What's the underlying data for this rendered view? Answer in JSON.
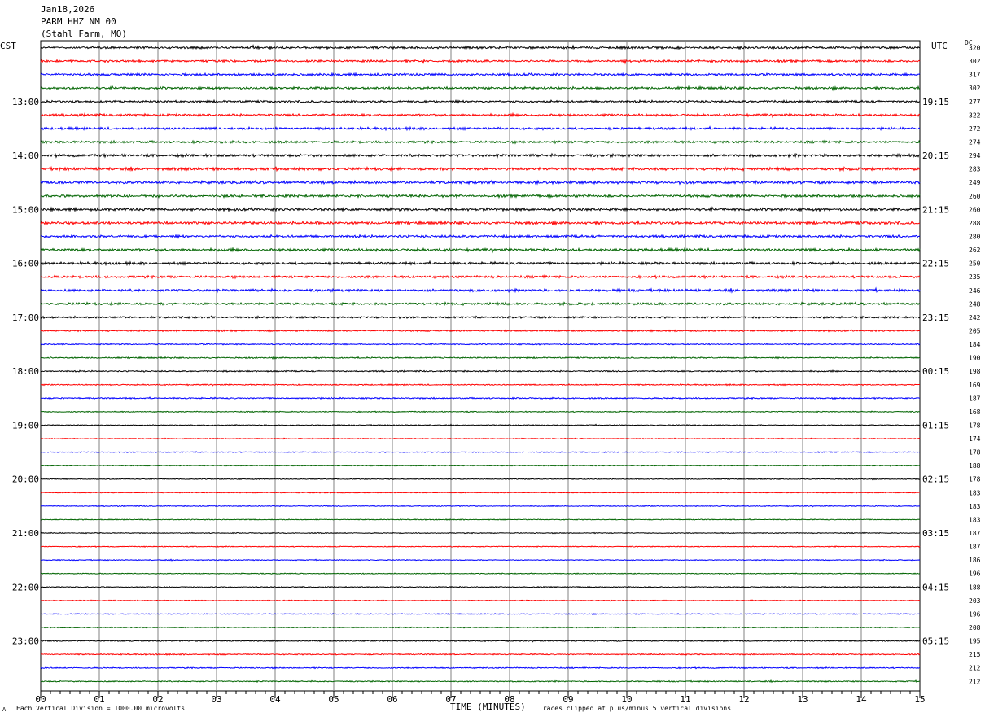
{
  "header": {
    "date": "Jan18,2026",
    "station": "PARM HHZ NM 00",
    "location": "(Stahl Farm, MO)"
  },
  "corner": {
    "left_zone": "CST",
    "right_zone": "UTC",
    "dc_label": "DC"
  },
  "footer": {
    "scale_note": "Each Vertical Division = 1000.00 microvolts",
    "clip_note": "Traces clipped at plus/minus 5 vertical divisions",
    "corner_mark": "A"
  },
  "chart_data": {
    "type": "line",
    "title": "",
    "xlabel": "TIME (MINUTES)",
    "ylabel": "",
    "xlim": [
      0,
      15
    ],
    "x_ticks": [
      "00",
      "01",
      "02",
      "03",
      "04",
      "05",
      "06",
      "07",
      "08",
      "09",
      "10",
      "11",
      "12",
      "13",
      "14",
      "15"
    ],
    "grid": true,
    "trace_colors": [
      "#000000",
      "#ff0000",
      "#0000ff",
      "#006400"
    ],
    "left_time_labels": [
      "13:00",
      "14:00",
      "15:00",
      "16:00",
      "17:00",
      "18:00",
      "19:00",
      "20:00",
      "21:00",
      "22:00",
      "23:00"
    ],
    "right_time_labels": [
      "19:15",
      "20:15",
      "21:15",
      "22:15",
      "23:15",
      "00:15",
      "01:15",
      "02:15",
      "03:15",
      "04:15",
      "05:15"
    ],
    "label_every_n_traces": 4,
    "first_labeled_trace": 4,
    "dc_offsets": [
      320,
      302,
      317,
      302,
      277,
      322,
      272,
      274,
      294,
      283,
      249,
      260,
      260,
      288,
      280,
      262,
      250,
      235,
      246,
      248,
      242,
      205,
      184,
      190,
      198,
      169,
      187,
      168,
      178,
      174,
      178,
      188,
      178,
      183,
      183,
      183,
      187,
      187,
      186,
      196,
      188,
      203,
      196,
      208,
      195,
      215,
      212,
      212
    ],
    "trace_activity": [
      0.8,
      0.75,
      0.8,
      0.8,
      0.75,
      0.8,
      0.8,
      0.75,
      0.9,
      0.95,
      0.9,
      0.85,
      0.9,
      0.95,
      0.85,
      0.9,
      0.85,
      0.8,
      0.85,
      0.8,
      0.65,
      0.5,
      0.4,
      0.45,
      0.45,
      0.4,
      0.45,
      0.35,
      0.35,
      0.3,
      0.3,
      0.3,
      0.3,
      0.3,
      0.3,
      0.3,
      0.3,
      0.3,
      0.3,
      0.3,
      0.35,
      0.3,
      0.3,
      0.35,
      0.4,
      0.4,
      0.4,
      0.4
    ]
  }
}
